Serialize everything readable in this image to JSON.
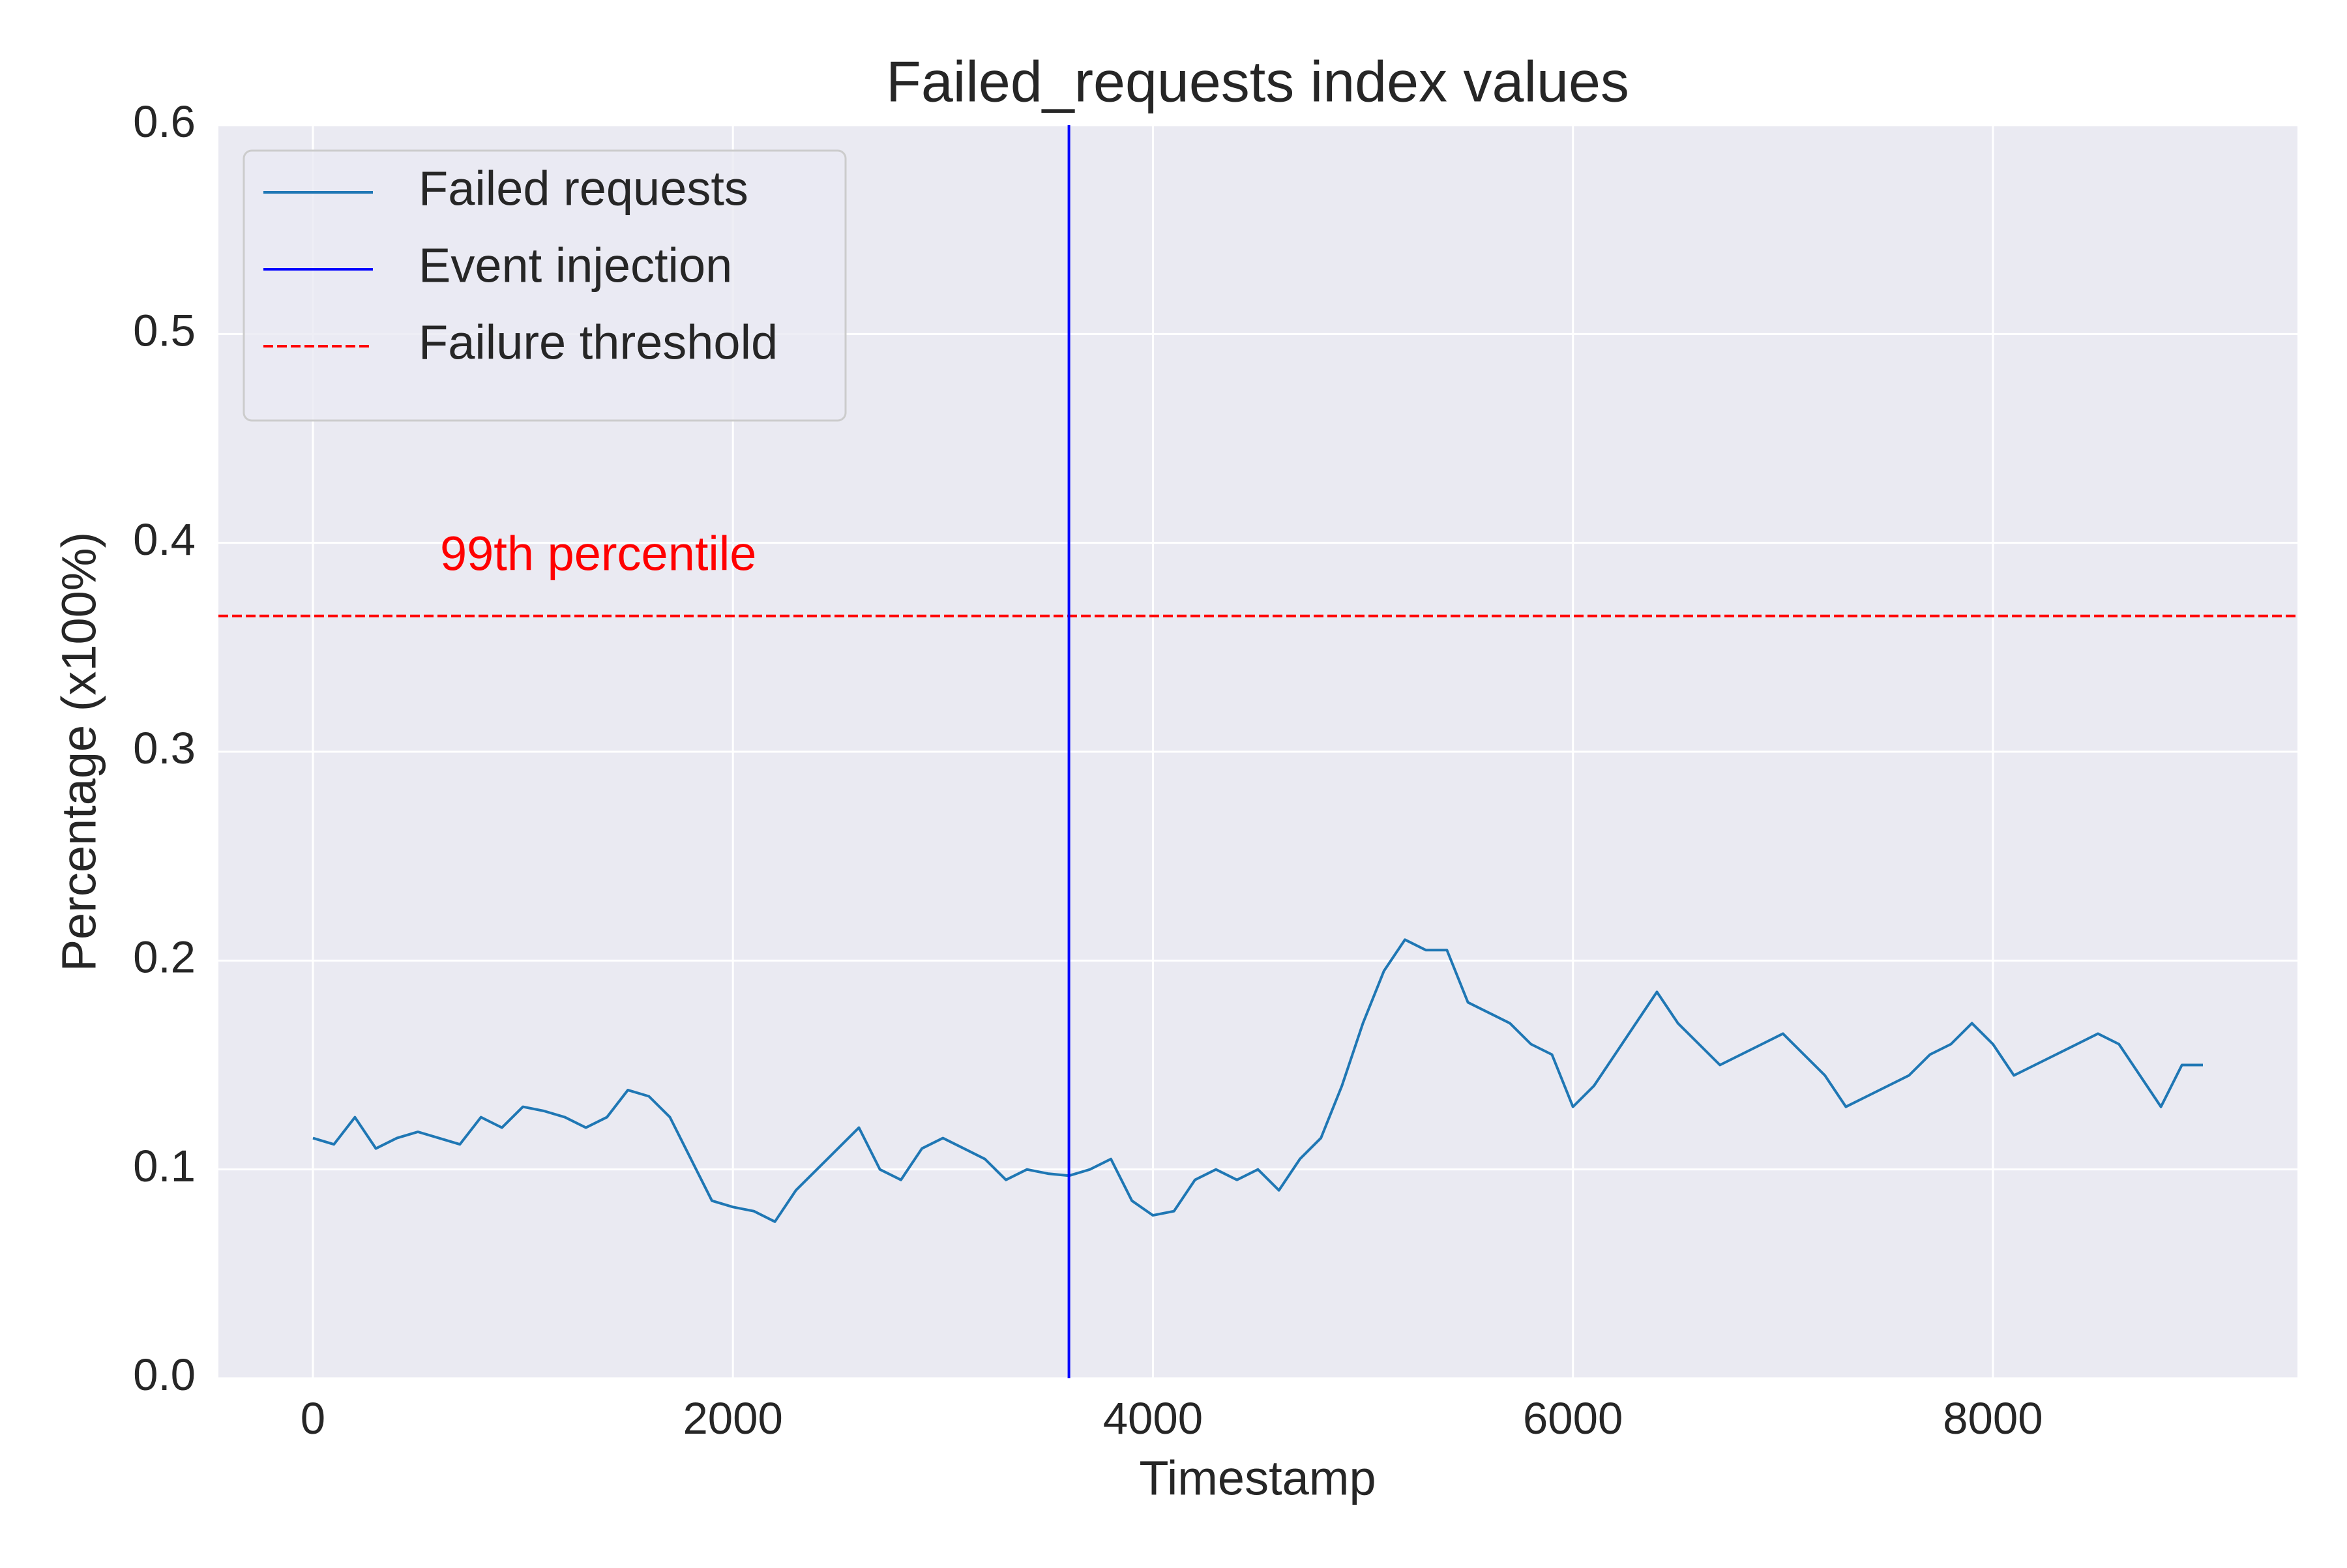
{
  "chart_data": {
    "type": "line",
    "title": "Failed_requests index values",
    "xlabel": "Timestamp",
    "ylabel": "Percentage (x100%)",
    "x": [
      0,
      100,
      200,
      300,
      400,
      500,
      600,
      700,
      800,
      900,
      1000,
      1100,
      1200,
      1300,
      1400,
      1500,
      1600,
      1700,
      1800,
      1900,
      2000,
      2100,
      2200,
      2300,
      2400,
      2500,
      2600,
      2700,
      2800,
      2900,
      3000,
      3100,
      3200,
      3300,
      3400,
      3500,
      3600,
      3700,
      3800,
      3900,
      4000,
      4100,
      4200,
      4300,
      4400,
      4500,
      4600,
      4700,
      4800,
      4900,
      5000,
      5100,
      5200,
      5300,
      5400,
      5500,
      5600,
      5700,
      5800,
      5900,
      6000,
      6100,
      6200,
      6300,
      6400,
      6500,
      6600,
      6700,
      6800,
      6900,
      7000,
      7100,
      7200,
      7300,
      7400,
      7500,
      7600,
      7700,
      7800,
      7900,
      8000,
      8100,
      8200,
      8300,
      8400,
      8500,
      8600,
      8700,
      8800,
      8900,
      9000
    ],
    "series": [
      {
        "name": "Failed requests",
        "color": "#1f77b4",
        "values": [
          0.115,
          0.112,
          0.125,
          0.11,
          0.115,
          0.118,
          0.115,
          0.112,
          0.125,
          0.12,
          0.13,
          0.128,
          0.125,
          0.12,
          0.125,
          0.138,
          0.135,
          0.125,
          0.105,
          0.085,
          0.082,
          0.08,
          0.075,
          0.09,
          0.1,
          0.11,
          0.12,
          0.1,
          0.095,
          0.11,
          0.115,
          0.11,
          0.105,
          0.095,
          0.1,
          0.098,
          0.097,
          0.1,
          0.105,
          0.085,
          0.078,
          0.08,
          0.095,
          0.1,
          0.095,
          0.1,
          0.09,
          0.105,
          0.115,
          0.14,
          0.17,
          0.195,
          0.21,
          0.205,
          0.205,
          0.18,
          0.175,
          0.17,
          0.16,
          0.155,
          0.13,
          0.14,
          0.155,
          0.17,
          0.185,
          0.17,
          0.16,
          0.15,
          0.155,
          0.16,
          0.165,
          0.155,
          0.145,
          0.13,
          0.135,
          0.14,
          0.145,
          0.155,
          0.16,
          0.17,
          0.16,
          0.145,
          0.15,
          0.155,
          0.16,
          0.165,
          0.16,
          0.145,
          0.13,
          0.15,
          0.15
        ]
      }
    ],
    "vlines": [
      {
        "name": "Event injection",
        "color": "#0000ff",
        "x": 3600
      }
    ],
    "hlines": [
      {
        "name": "Failure threshold",
        "color": "#ff0000",
        "y": 0.365,
        "style": "dashed"
      }
    ],
    "annotation": {
      "text": "99th percentile",
      "color": "#ff0000"
    },
    "xlim": [
      -450,
      9450
    ],
    "ylim": [
      0,
      0.6
    ],
    "xticks": [
      0,
      2000,
      4000,
      6000,
      8000
    ],
    "yticks": [
      {
        "value": 0,
        "label": "0.0"
      },
      0.1,
      0.2,
      0.3,
      0.4,
      0.5,
      0.6
    ],
    "grid": true,
    "background": "#eaeaf2",
    "legend": "upper left"
  }
}
